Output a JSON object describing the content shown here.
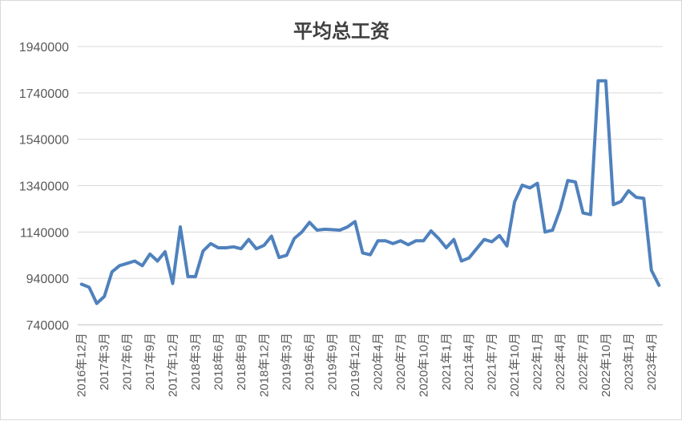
{
  "chart_data": {
    "type": "line",
    "title": "平均总工资",
    "xlabel": "",
    "ylabel": "",
    "ylim": [
      740000,
      1940000
    ],
    "yticks": [
      740000,
      940000,
      1140000,
      1340000,
      1540000,
      1740000,
      1940000
    ],
    "grid": true,
    "legend": "none",
    "line_color": "#4f81bd",
    "x_tick_labels": [
      "2016年12月",
      "2017年3月",
      "2017年6月",
      "2017年9月",
      "2017年12月",
      "2018年3月",
      "2018年6月",
      "2018年9月",
      "2018年12月",
      "2019年3月",
      "2019年6月",
      "2019年9月",
      "2019年12月",
      "2020年4月",
      "2020年7月",
      "2020年10月",
      "2021年1月",
      "2021年4月",
      "2021年7月",
      "2021年10月",
      "2022年1月",
      "2022年4月",
      "2022年7月",
      "2022年10月",
      "2023年1月",
      "2023年4月"
    ],
    "series": [
      {
        "values": [
          915000,
          902000,
          832000,
          862000,
          968000,
          995000,
          1005000,
          1015000,
          995000,
          1045000,
          1015000,
          1055000,
          918000,
          1162000,
          948000,
          948000,
          1058000,
          1090000,
          1072000,
          1072000,
          1076000,
          1068000,
          1108000,
          1068000,
          1082000,
          1122000,
          1030000,
          1040000,
          1112000,
          1140000,
          1182000,
          1148000,
          1152000,
          1150000,
          1148000,
          1162000,
          1185000,
          1050000,
          1042000,
          1102000,
          1102000,
          1090000,
          1102000,
          1085000,
          1102000,
          1102000,
          1145000,
          1112000,
          1072000,
          1108000,
          1015000,
          1028000,
          1068000,
          1108000,
          1098000,
          1125000,
          1080000,
          1270000,
          1342000,
          1330000,
          1350000,
          1140000,
          1148000,
          1238000,
          1362000,
          1356000,
          1222000,
          1215000,
          1792000,
          1792000,
          1258000,
          1272000,
          1318000,
          1290000,
          1285000,
          975000,
          910000
        ]
      }
    ]
  }
}
